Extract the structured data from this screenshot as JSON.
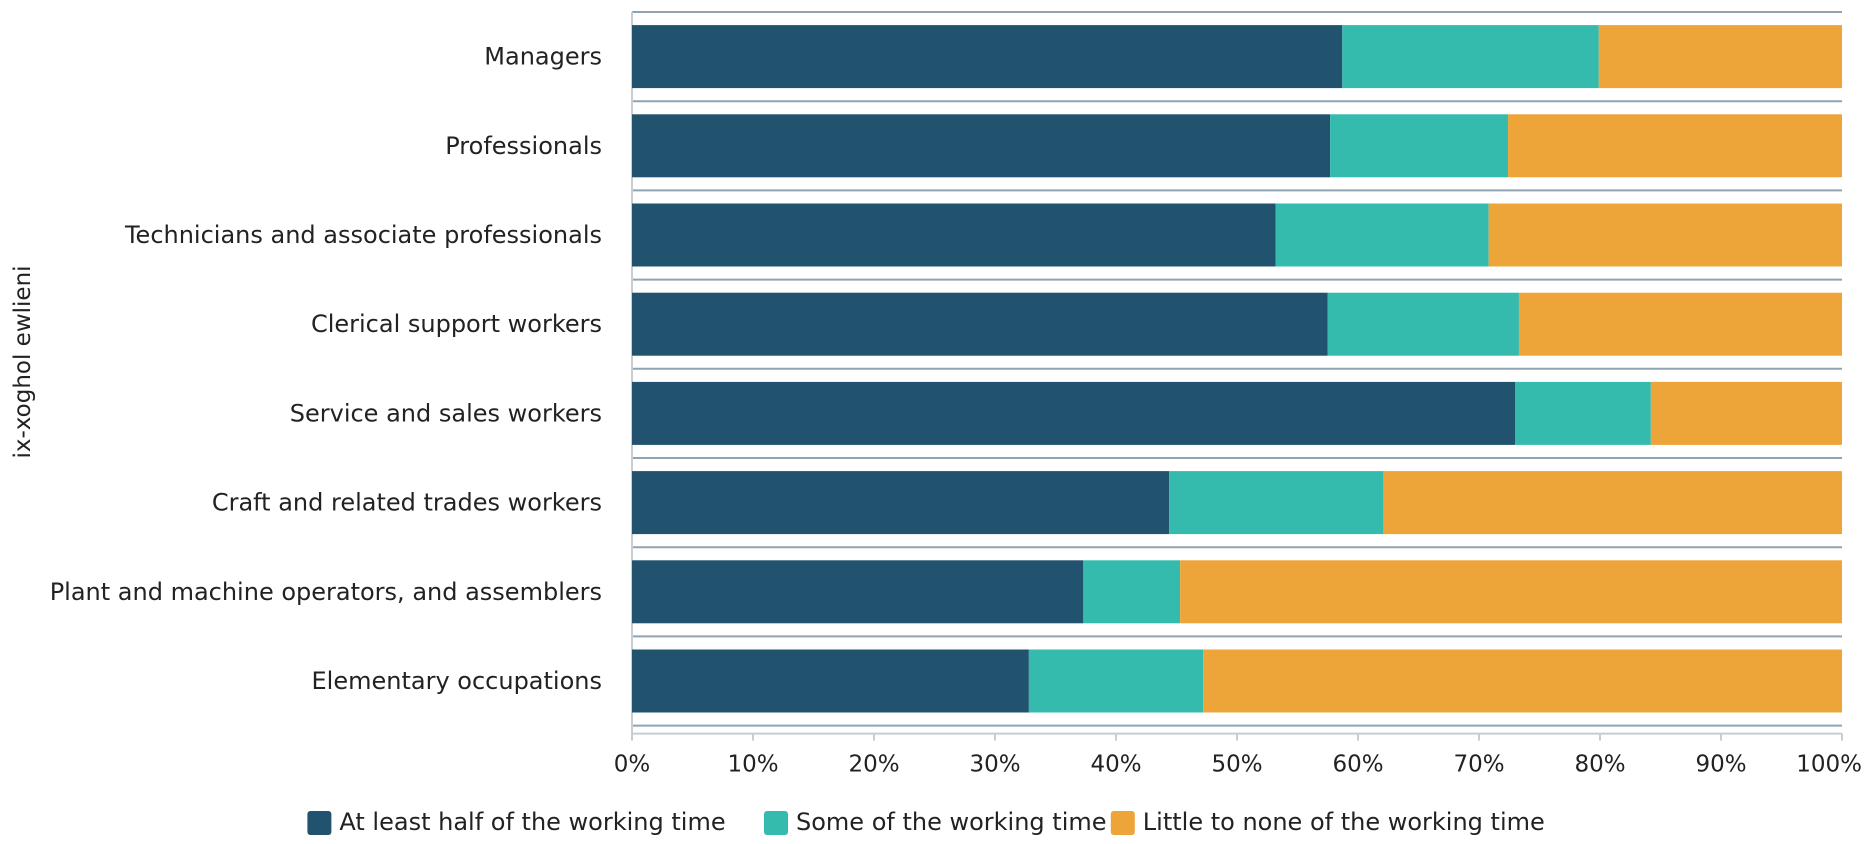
{
  "chart_data": {
    "type": "bar",
    "orientation": "horizontal",
    "stacked": true,
    "ylabel": "ix-xoghol ewlieni",
    "xlabel": "",
    "xlim": [
      0,
      100
    ],
    "x_ticks": [
      "0%",
      "10%",
      "20%",
      "30%",
      "40%",
      "50%",
      "60%",
      "70%",
      "80%",
      "90%",
      "100%"
    ],
    "categories": [
      "Managers",
      "Professionals",
      "Technicians and associate professionals",
      "Clerical support workers",
      "Service and sales workers",
      "Craft and related trades workers",
      "Plant and machine operators, and assemblers",
      "Elementary occupations"
    ],
    "series": [
      {
        "name": "At least half of the working time",
        "color": "#21536f",
        "values": [
          58.7,
          57.7,
          53.2,
          57.5,
          73.0,
          44.4,
          37.3,
          32.8
        ]
      },
      {
        "name": "Some of the working time",
        "color": "#34bbad",
        "values": [
          21.2,
          14.7,
          17.6,
          15.8,
          11.2,
          17.7,
          8.0,
          14.4
        ]
      },
      {
        "name": "Little to none of the working time",
        "color": "#eda439",
        "values": [
          20.1,
          27.6,
          29.2,
          26.7,
          15.8,
          37.9,
          54.7,
          52.8
        ]
      }
    ],
    "legend_position": "bottom",
    "grid": false
  }
}
